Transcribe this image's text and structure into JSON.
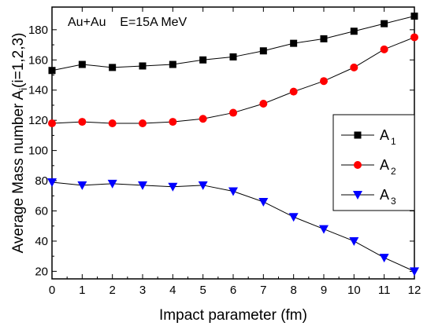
{
  "chart_data": {
    "type": "line",
    "annotation": "Au+Au    E=15A MeV",
    "xlabel": "Impact parameter (fm)",
    "ylabel_main": "Average Mass number A",
    "ylabel_sub": "i",
    "ylabel_tail": "(i=1,2,3)",
    "xlim": [
      0,
      12
    ],
    "ylim": [
      15,
      195
    ],
    "x_ticks": [
      0,
      1,
      2,
      3,
      4,
      5,
      6,
      7,
      8,
      9,
      10,
      11,
      12
    ],
    "y_ticks": [
      20,
      40,
      60,
      80,
      100,
      120,
      140,
      160,
      180
    ],
    "x": [
      0,
      1,
      2,
      3,
      4,
      5,
      6,
      7,
      8,
      9,
      10,
      11,
      12
    ],
    "legend_position": "right",
    "series": [
      {
        "name": "A",
        "sub": "1",
        "marker": "square",
        "color": "#000000",
        "values": [
          153,
          157,
          155,
          156,
          157,
          160,
          162,
          166,
          171,
          174,
          179,
          184,
          189
        ]
      },
      {
        "name": "A",
        "sub": "2",
        "marker": "circle",
        "color": "#ff0000",
        "values": [
          118,
          119,
          118,
          118,
          119,
          121,
          125,
          131,
          139,
          146,
          155,
          167,
          175
        ]
      },
      {
        "name": "A",
        "sub": "3",
        "marker": "triangle-down",
        "color": "#0000ff",
        "values": [
          79,
          77,
          78,
          77,
          76,
          77,
          73,
          66,
          56,
          48,
          40,
          29,
          20
        ]
      }
    ]
  }
}
